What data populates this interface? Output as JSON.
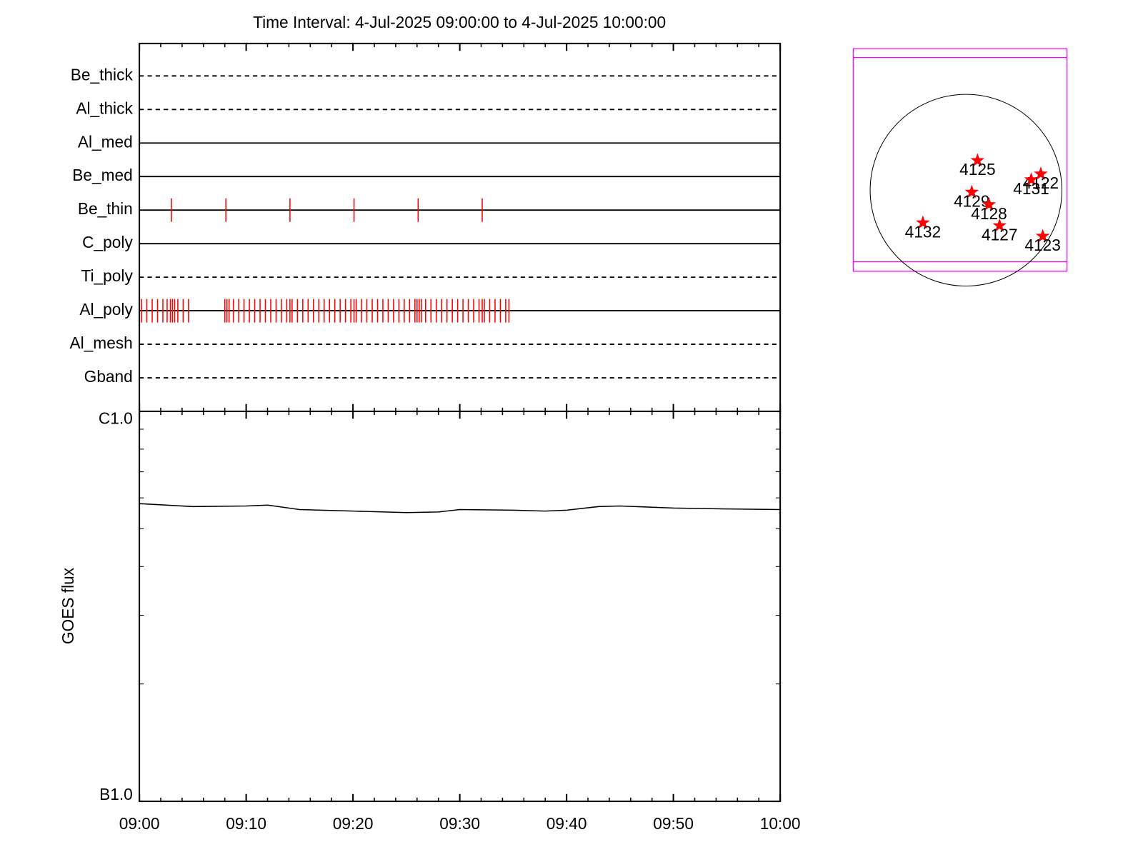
{
  "chart_data": [
    {
      "type": "timeline",
      "title": "Time Interval:  4-Jul-2025 09:00:00 to  4-Jul-2025 10:00:00",
      "xlim": [
        0,
        60
      ],
      "xticks": [
        0,
        10,
        20,
        30,
        40,
        50,
        60
      ],
      "xminor_ticks": [
        2,
        4,
        6,
        8,
        12,
        14,
        16,
        18,
        22,
        24,
        26,
        28,
        32,
        34,
        36,
        38,
        42,
        44,
        46,
        48,
        52,
        54,
        56,
        58
      ],
      "event_color": "#ff0000",
      "rows": [
        {
          "name": "Be_thick",
          "style": "dashed",
          "events": []
        },
        {
          "name": "Al_thick",
          "style": "dashed",
          "events": []
        },
        {
          "name": "Al_med",
          "style": "solid",
          "events": []
        },
        {
          "name": "Be_med",
          "style": "solid",
          "events": []
        },
        {
          "name": "Be_thin",
          "style": "solid",
          "events": [
            3.0,
            8.1,
            14.1,
            20.1,
            26.1,
            32.1
          ]
        },
        {
          "name": "C_poly",
          "style": "solid",
          "events": []
        },
        {
          "name": "Ti_poly",
          "style": "dashed",
          "events": []
        },
        {
          "name": "Al_poly",
          "style": "solid",
          "events": [
            0.2,
            0.7,
            1.2,
            1.7,
            2.2,
            2.6,
            2.9,
            3.1,
            3.3,
            3.6,
            4.1,
            4.6,
            8.0,
            8.2,
            8.4,
            8.8,
            9.3,
            9.8,
            10.3,
            10.8,
            11.3,
            11.8,
            12.3,
            12.8,
            13.3,
            13.8,
            14.1,
            14.3,
            14.8,
            15.3,
            15.8,
            16.3,
            16.8,
            17.3,
            17.8,
            18.3,
            18.8,
            19.3,
            19.8,
            20.1,
            20.3,
            20.8,
            21.3,
            21.8,
            22.3,
            22.8,
            23.3,
            23.8,
            24.3,
            24.8,
            25.3,
            25.8,
            26.0,
            26.2,
            26.4,
            26.8,
            27.3,
            27.8,
            28.3,
            28.8,
            29.3,
            29.8,
            30.3,
            30.8,
            31.3,
            31.8,
            32.1,
            32.3,
            32.8,
            33.3,
            33.8,
            34.3,
            34.6
          ]
        },
        {
          "name": "Al_mesh",
          "style": "dashed",
          "events": []
        },
        {
          "name": "Gband",
          "style": "dashed",
          "events": []
        }
      ]
    },
    {
      "type": "line",
      "ylabel": "GOES flux",
      "log_scale": true,
      "color": "#000000",
      "x": [
        0,
        5,
        10,
        12,
        15,
        20,
        25,
        28,
        30,
        35,
        38,
        40,
        43,
        45,
        50,
        55,
        60
      ],
      "y": [
        5.8e-07,
        5.7e-07,
        5.72e-07,
        5.75e-07,
        5.6e-07,
        5.55e-07,
        5.5e-07,
        5.52e-07,
        5.6e-07,
        5.58e-07,
        5.55e-07,
        5.58e-07,
        5.7e-07,
        5.72e-07,
        5.65e-07,
        5.62e-07,
        5.6e-07
      ],
      "xlim": [
        0,
        60
      ],
      "xticks": [
        {
          "value": 0,
          "label": "09:00"
        },
        {
          "value": 10,
          "label": "09:10"
        },
        {
          "value": 20,
          "label": "09:20"
        },
        {
          "value": 30,
          "label": "09:30"
        },
        {
          "value": 40,
          "label": "09:40"
        },
        {
          "value": 50,
          "label": "09:50"
        },
        {
          "value": 60,
          "label": "10:00"
        }
      ],
      "xminor_ticks": [
        2,
        4,
        6,
        8,
        12,
        14,
        16,
        18,
        22,
        24,
        26,
        28,
        32,
        34,
        36,
        38,
        42,
        44,
        46,
        48,
        52,
        54,
        56,
        58
      ],
      "ylim": [
        1e-07,
        1e-06
      ],
      "yticks": [
        {
          "value": 1e-06,
          "label": "C1.0"
        },
        {
          "value": 1e-07,
          "label": "B1.0"
        }
      ],
      "yminor_ticks": [
        2e-07,
        3e-07,
        4e-07,
        5e-07,
        6e-07,
        7e-07,
        8e-07,
        9e-07
      ]
    },
    {
      "type": "disk",
      "color": "#ff0000",
      "frame_color": "#ff00ff",
      "points": [
        {
          "label": "4125",
          "x": 0.12,
          "y": 0.31
        },
        {
          "label": "4122",
          "x": 0.78,
          "y": 0.17
        },
        {
          "label": "4131",
          "x": 0.68,
          "y": 0.11
        },
        {
          "label": "4129",
          "x": 0.06,
          "y": -0.02
        },
        {
          "label": "4128",
          "x": 0.24,
          "y": -0.15
        },
        {
          "label": "4132",
          "x": -0.45,
          "y": -0.34
        },
        {
          "label": "4127",
          "x": 0.35,
          "y": -0.37
        },
        {
          "label": "4123",
          "x": 0.8,
          "y": -0.48
        }
      ]
    }
  ]
}
